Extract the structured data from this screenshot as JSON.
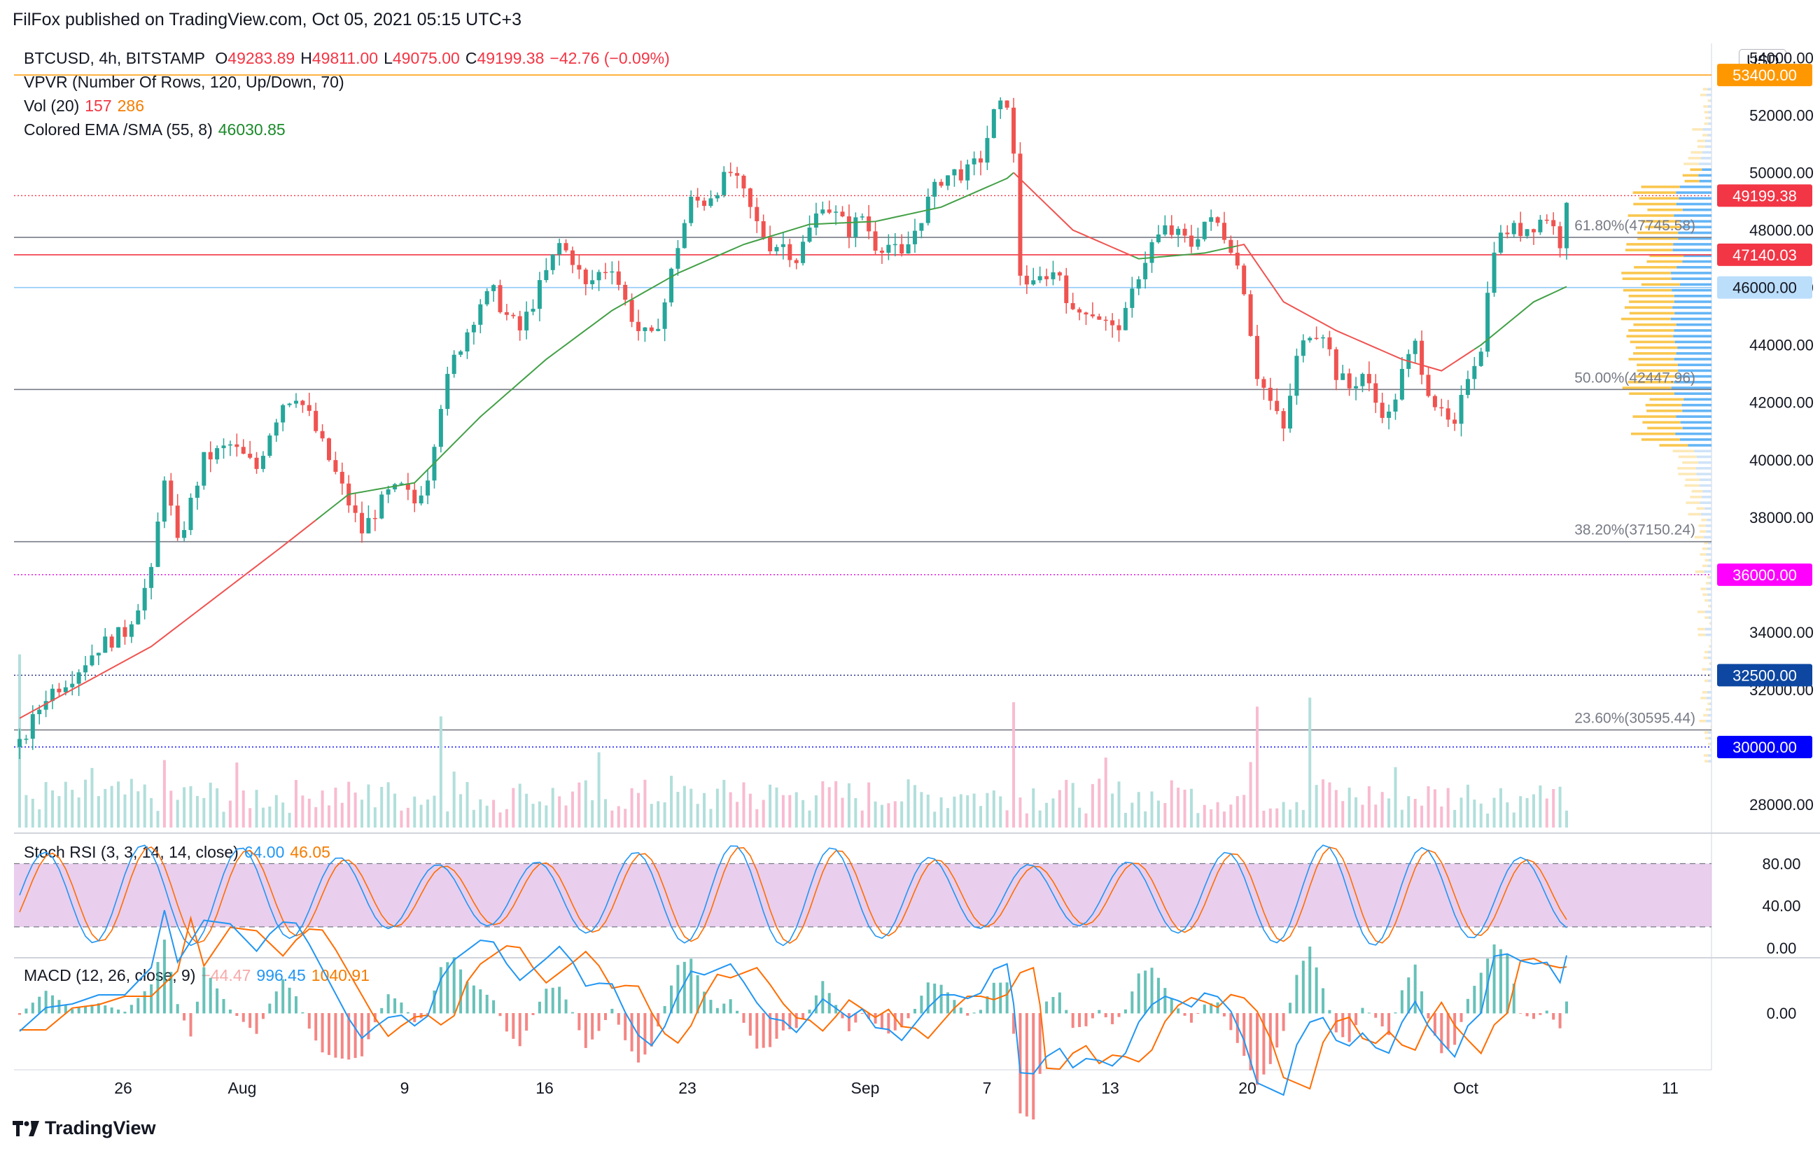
{
  "header": {
    "publisher": "FilFox published on TradingView.com, Oct 05, 2021 05:15 UTC+3"
  },
  "legend": {
    "symbol": "BTCUSD, 4h, BITSTAMP",
    "open_label": "O",
    "open": "49283.89",
    "high_label": "H",
    "high": "49811.00",
    "low_label": "L",
    "low": "49075.00",
    "close_label": "C",
    "close": "49199.38",
    "change": "−42.76 (−0.09%)",
    "vpvr": "VPVR (Number Of Rows, 120, Up/Down, 70)",
    "vol_label": "Vol (20)",
    "vol_value": "157",
    "vol_ma": "286",
    "ema_label": "Colored EMA /SMA (55, 8)",
    "ema_value": "46030.85",
    "stoch_label": "Stoch RSI (3, 3, 14, 14, close)",
    "stoch_k": "64.00",
    "stoch_d": "46.05",
    "macd_label": "MACD (12, 26, close, 9)",
    "macd_hist": "−44.47",
    "macd_value": "996.45",
    "macd_signal": "1040.91"
  },
  "footer": {
    "brand": "TradingView"
  },
  "chart_data": {
    "type": "candlestick",
    "currency": "USD",
    "price_ylim": [
      27000,
      54500
    ],
    "x_ticks": [
      "26",
      "Aug",
      "9",
      "16",
      "23",
      "Sep",
      "7",
      "13",
      "20",
      "Oct",
      "11"
    ],
    "price_ticks": [
      "54000.00",
      "52000.00",
      "50000.00",
      "48000.00",
      "46000.00",
      "44000.00",
      "42000.00",
      "40000.00",
      "38000.00",
      "34000.00",
      "32000.00",
      "28000.00"
    ],
    "price_axis_labels": [
      {
        "value": 53400,
        "text": "53400.00",
        "color": "#ff9800"
      },
      {
        "value": 49199.38,
        "text": "49199.38",
        "color": "#f23645"
      },
      {
        "value": 47140.03,
        "text": "47140.03",
        "color": "#f23645"
      },
      {
        "value": 46000,
        "text": "46000.00",
        "color": "#bbdefb"
      },
      {
        "value": 36000,
        "text": "36000.00",
        "color": "#ff00ff"
      },
      {
        "value": 32500,
        "text": "32500.00",
        "color": "#0d47a1"
      },
      {
        "value": 30000,
        "text": "30000.00",
        "color": "#0000ff"
      }
    ],
    "horizontal_levels": [
      {
        "value": 53400,
        "color": "#ff9800",
        "style": "solid"
      },
      {
        "value": 49199.38,
        "color": "#f23645",
        "style": "dotted"
      },
      {
        "value": 47140.03,
        "color": "#f23645",
        "style": "solid"
      },
      {
        "value": 46000,
        "color": "#90caf9",
        "style": "solid"
      },
      {
        "value": 36000,
        "color": "#e000e0",
        "style": "dotted"
      },
      {
        "value": 32500,
        "color": "#1a237e",
        "style": "dotted"
      },
      {
        "value": 30000,
        "color": "#0000ff",
        "style": "dotted"
      }
    ],
    "fib_levels": [
      {
        "value": 47745.58,
        "text": "61.80%(47745.58)"
      },
      {
        "value": 42447.96,
        "text": "50.00%(42447.96)"
      },
      {
        "value": 37150.24,
        "text": "38.20%(37150.24)"
      },
      {
        "value": 30595.44,
        "text": "23.60%(30595.44)"
      }
    ],
    "price_path": [
      [
        0,
        30000
      ],
      [
        4,
        31800
      ],
      [
        8,
        32500
      ],
      [
        12,
        33500
      ],
      [
        16,
        34000
      ],
      [
        20,
        36000
      ],
      [
        22,
        39500
      ],
      [
        24,
        37000
      ],
      [
        26,
        38500
      ],
      [
        28,
        40000
      ],
      [
        32,
        40500
      ],
      [
        36,
        39700
      ],
      [
        38,
        41000
      ],
      [
        40,
        42000
      ],
      [
        42,
        42300
      ],
      [
        44,
        41500
      ],
      [
        46,
        40500
      ],
      [
        48,
        39500
      ],
      [
        50,
        38500
      ],
      [
        52,
        37500
      ],
      [
        54,
        38200
      ],
      [
        56,
        38800
      ],
      [
        58,
        39000
      ],
      [
        60,
        38500
      ],
      [
        62,
        39500
      ],
      [
        64,
        42000
      ],
      [
        66,
        43500
      ],
      [
        68,
        44500
      ],
      [
        70,
        45500
      ],
      [
        72,
        45800
      ],
      [
        74,
        45000
      ],
      [
        76,
        44500
      ],
      [
        78,
        45500
      ],
      [
        80,
        46500
      ],
      [
        82,
        47500
      ],
      [
        84,
        47000
      ],
      [
        86,
        46000
      ],
      [
        88,
        46500
      ],
      [
        90,
        46800
      ],
      [
        92,
        45500
      ],
      [
        94,
        44500
      ],
      [
        96,
        44200
      ],
      [
        98,
        45500
      ],
      [
        100,
        47500
      ],
      [
        102,
        49000
      ],
      [
        104,
        49000
      ],
      [
        106,
        49500
      ],
      [
        108,
        50000
      ],
      [
        110,
        49200
      ],
      [
        112,
        48200
      ],
      [
        114,
        47500
      ],
      [
        116,
        47500
      ],
      [
        118,
        47000
      ],
      [
        120,
        48000
      ],
      [
        122,
        49000
      ],
      [
        124,
        48500
      ],
      [
        126,
        48000
      ],
      [
        128,
        48500
      ],
      [
        130,
        47500
      ],
      [
        132,
        47500
      ],
      [
        134,
        47000
      ],
      [
        136,
        48000
      ],
      [
        138,
        49000
      ],
      [
        140,
        49800
      ],
      [
        142,
        50000
      ],
      [
        144,
        50000
      ],
      [
        146,
        50500
      ],
      [
        148,
        52000
      ],
      [
        150,
        52500
      ],
      [
        151,
        50500
      ],
      [
        152,
        46500
      ],
      [
        154,
        46000
      ],
      [
        156,
        46500
      ],
      [
        158,
        46500
      ],
      [
        160,
        45000
      ],
      [
        162,
        45300
      ],
      [
        164,
        45000
      ],
      [
        166,
        44500
      ],
      [
        168,
        45000
      ],
      [
        170,
        46500
      ],
      [
        172,
        47500
      ],
      [
        174,
        48000
      ],
      [
        176,
        47800
      ],
      [
        178,
        47500
      ],
      [
        180,
        48300
      ],
      [
        182,
        48200
      ],
      [
        184,
        47500
      ],
      [
        186,
        46000
      ],
      [
        188,
        43000
      ],
      [
        190,
        42000
      ],
      [
        192,
        41000
      ],
      [
        194,
        43500
      ],
      [
        196,
        44500
      ],
      [
        198,
        44500
      ],
      [
        200,
        43000
      ],
      [
        202,
        42500
      ],
      [
        204,
        43000
      ],
      [
        206,
        42000
      ],
      [
        208,
        41500
      ],
      [
        210,
        43000
      ],
      [
        212,
        44000
      ],
      [
        214,
        42500
      ],
      [
        216,
        41500
      ],
      [
        218,
        41000
      ],
      [
        220,
        43000
      ],
      [
        222,
        44000
      ],
      [
        224,
        47500
      ],
      [
        226,
        48000
      ],
      [
        228,
        48000
      ],
      [
        230,
        48200
      ],
      [
        232,
        48500
      ],
      [
        234,
        47600
      ],
      [
        235,
        49199.38
      ]
    ],
    "ema_path": [
      [
        0,
        31000
      ],
      [
        20,
        33500
      ],
      [
        40,
        37000
      ],
      [
        50,
        38800
      ],
      [
        60,
        39200
      ],
      [
        70,
        41500
      ],
      [
        80,
        43500
      ],
      [
        90,
        45200
      ],
      [
        100,
        46500
      ],
      [
        110,
        47500
      ],
      [
        120,
        48200
      ],
      [
        130,
        48300
      ],
      [
        140,
        48800
      ],
      [
        150,
        49800
      ],
      [
        151,
        50000
      ],
      [
        160,
        48000
      ],
      [
        170,
        47000
      ],
      [
        180,
        47200
      ],
      [
        186,
        47500
      ],
      [
        192,
        45500
      ],
      [
        200,
        44500
      ],
      [
        210,
        43500
      ],
      [
        216,
        43100
      ],
      [
        222,
        44000
      ],
      [
        230,
        45500
      ],
      [
        235,
        46030.85
      ]
    ],
    "vpvr_peak_price": 44500,
    "stoch_rsi": {
      "k": 64.0,
      "d": 46.05,
      "levels": [
        80,
        20
      ],
      "ticks": [
        "80.00",
        "40.00",
        "0.00"
      ]
    },
    "macd": {
      "hist": -44.47,
      "macd": 996.45,
      "signal": 1040.91,
      "ticks": [
        "0.00"
      ]
    }
  }
}
